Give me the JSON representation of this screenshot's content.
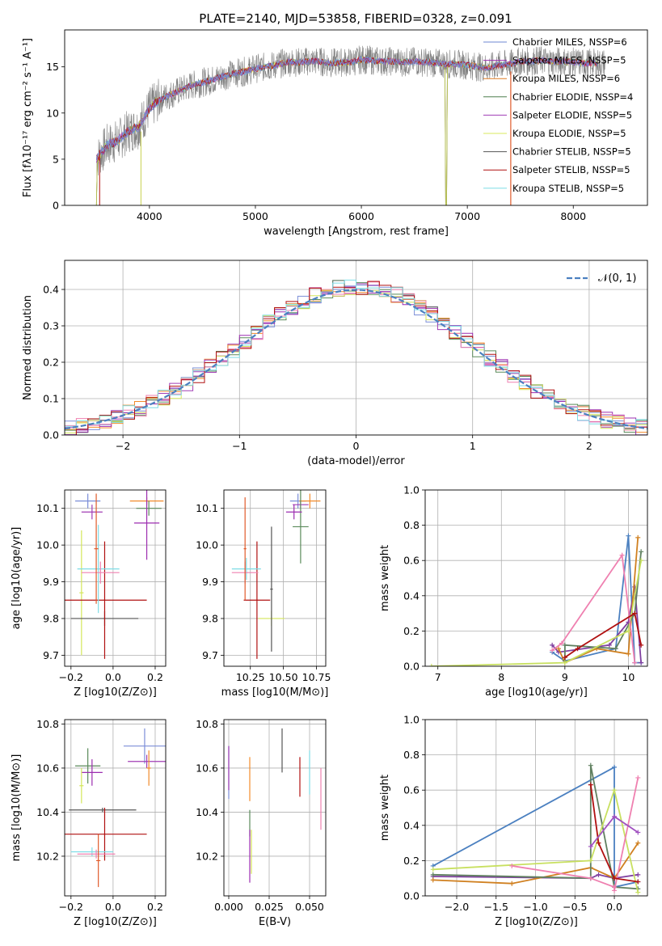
{
  "figure_title": "PLATE=2140, MJD=53858, FIBERID=0328, z=0.091",
  "colors": [
    "#7b8ed8",
    "#a13db5",
    "#f28b2b",
    "#5a8a5a",
    "#9c2db0",
    "#d4e65a",
    "#555555",
    "#b01010",
    "#7fdde6",
    "#ef80b0",
    "#e05a2a",
    "#4b80c0",
    "#d08020",
    "#608060",
    "#8040a0",
    "#c8d050"
  ],
  "chart_data": [
    {
      "id": "spectrum",
      "type": "line",
      "xlabel": "wavelength [Angstrom, rest frame]",
      "ylabel": "Flux [fλ10⁻¹⁷ erg cm⁻² s⁻¹ A⁻¹]",
      "xlim": [
        3200,
        8700
      ],
      "ylim": [
        0,
        19
      ],
      "xticks": [
        "4000",
        "5000",
        "6000",
        "7000",
        "8000"
      ],
      "yticks": [
        "0",
        "5",
        "10",
        "15"
      ],
      "legend_position": "right",
      "legend": [
        "Chabrier MILES, NSSP=6",
        "Salpeter MILES, NSSP=5",
        "Kroupa MILES, NSSP=6",
        "Chabrier ELODIE, NSSP=4",
        "Salpeter ELODIE, NSSP=5",
        "Kroupa ELODIE, NSSP=5",
        "Chabrier STELIB, NSSP=5",
        "Salpeter STELIB, NSSP=5",
        "Kroupa STELIB, NSSP=5"
      ],
      "legend_colors": [
        "#6d87d3",
        "#9c2db0",
        "#e07c24",
        "#4f7f4f",
        "#a13db5",
        "#d9ea5c",
        "#555555",
        "#b01010",
        "#7fdde6"
      ],
      "x": [
        3500,
        3600,
        3700,
        3800,
        3900,
        4000,
        4100,
        4200,
        4300,
        4400,
        4500,
        4600,
        4700,
        4800,
        4900,
        5000,
        5100,
        5200,
        5300,
        5400,
        5500,
        5600,
        5700,
        5800,
        5900,
        6000,
        6100,
        6200,
        6300,
        6400,
        6500,
        6600,
        6700,
        6800,
        6900,
        7000,
        7100,
        7200,
        7300,
        7400,
        7500,
        7600,
        7700,
        7800,
        7900,
        8000,
        8100,
        8200,
        8300
      ],
      "y": [
        5.0,
        6.5,
        7.0,
        8.0,
        8.5,
        10.5,
        11.5,
        12.0,
        12.5,
        13.0,
        13.3,
        13.6,
        14.0,
        14.3,
        14.5,
        14.8,
        15.0,
        15.2,
        15.5,
        15.5,
        15.6,
        15.6,
        15.4,
        15.5,
        15.5,
        15.8,
        15.7,
        15.6,
        15.6,
        15.5,
        15.6,
        15.5,
        15.4,
        15.3,
        15.3,
        15.2,
        15.0,
        14.9,
        15.2,
        15.3,
        15.6,
        15.6,
        15.7,
        15.6,
        15.6,
        15.5,
        15.4,
        15.4,
        15.4
      ]
    },
    {
      "id": "residuals",
      "type": "line",
      "xlabel": "(data-model)/error",
      "ylabel": "Normed distribution",
      "xlim": [
        -2.5,
        2.5
      ],
      "ylim": [
        0,
        0.48
      ],
      "xticks": [
        "−2",
        "−1",
        "0",
        "1",
        "2"
      ],
      "yticks": [
        "0.0",
        "0.1",
        "0.2",
        "0.3",
        "0.4"
      ],
      "grid": true,
      "legend_position": "top-right",
      "legend": [
        "𝒩(0, 1)"
      ]
    },
    {
      "id": "age_vs_Z",
      "type": "scatter",
      "xlabel": "Z [log10(Z/Z⊙)]",
      "ylabel": "age  [log10(age/yr)]",
      "xlim": [
        -0.23,
        0.25
      ],
      "ylim": [
        9.67,
        10.15
      ],
      "xticks": [
        "−0.2",
        "0.0",
        "0.2"
      ],
      "yticks": [
        "9.7",
        "9.8",
        "9.9",
        "10.0",
        "10.1"
      ],
      "grid": true,
      "points": [
        {
          "x": -0.12,
          "xerr": 0.06,
          "y": 10.12,
          "yerr": 0.02
        },
        {
          "x": -0.1,
          "xerr": 0.05,
          "y": 10.09,
          "yerr": 0.02
        },
        {
          "x": 0.16,
          "xerr": 0.08,
          "y": 10.12,
          "yerr": 0.01
        },
        {
          "x": 0.17,
          "xerr": 0.06,
          "y": 10.1,
          "yerr": 0.02
        },
        {
          "x": 0.16,
          "xerr": 0.06,
          "y": 10.06,
          "yerr": 0.1
        },
        {
          "x": -0.15,
          "xerr": 0.01,
          "y": 9.87,
          "yerr": 0.17
        },
        {
          "x": -0.04,
          "xerr": 0.16,
          "y": 9.8,
          "yerr": 0.02
        },
        {
          "x": -0.04,
          "xerr": 0.2,
          "y": 9.85,
          "yerr": 0.16
        },
        {
          "x": -0.07,
          "xerr": 0.1,
          "y": 9.935,
          "yerr": 0.12
        },
        {
          "x": -0.06,
          "xerr": 0.09,
          "y": 9.925,
          "yerr": 0.03
        },
        {
          "x": -0.08,
          "xerr": 0.01,
          "y": 9.99,
          "yerr": 0.15
        }
      ]
    },
    {
      "id": "age_vs_mass",
      "type": "scatter",
      "xlabel": "mass [log10(M/M⊙)]",
      "xlim": [
        10.05,
        10.82
      ],
      "ylim": [
        9.67,
        10.15
      ],
      "xticks": [
        "10.25",
        "10.50",
        "10.75"
      ],
      "yticks": [
        "9.7",
        "9.8",
        "9.9",
        "10.0",
        "10.1"
      ],
      "grid": true,
      "points": [
        {
          "x": 10.61,
          "xerr": 0.06,
          "y": 10.12,
          "yerr": 0.02
        },
        {
          "x": 10.63,
          "xerr": 0.06,
          "y": 10.11,
          "yerr": 0.01
        },
        {
          "x": 10.7,
          "xerr": 0.08,
          "y": 10.12,
          "yerr": 0.02
        },
        {
          "x": 10.63,
          "xerr": 0.06,
          "y": 10.05,
          "yerr": 0.1
        },
        {
          "x": 10.58,
          "xerr": 0.06,
          "y": 10.09,
          "yerr": 0.02
        },
        {
          "x": 10.41,
          "xerr": 0.1,
          "y": 9.8,
          "yerr": 0.02
        },
        {
          "x": 10.41,
          "xerr": 0.01,
          "y": 9.88,
          "yerr": 0.17
        },
        {
          "x": 10.3,
          "xerr": 0.1,
          "y": 9.85,
          "yerr": 0.16
        },
        {
          "x": 10.22,
          "xerr": 0.11,
          "y": 9.935,
          "yerr": 0.03
        },
        {
          "x": 10.21,
          "xerr": 0.1,
          "y": 9.925,
          "yerr": 0.03
        },
        {
          "x": 10.21,
          "xerr": 0.01,
          "y": 9.99,
          "yerr": 0.14
        }
      ]
    },
    {
      "id": "weight_vs_age",
      "type": "line",
      "xlabel": "age  [log10(age/yr)]",
      "ylabel": "mass weight",
      "xlim": [
        6.8,
        10.3
      ],
      "ylim": [
        0,
        1.0
      ],
      "xticks": [
        "7",
        "8",
        "9",
        "10"
      ],
      "yticks": [
        "0.0",
        "0.2",
        "0.4",
        "0.6",
        "0.8",
        "1.0"
      ],
      "grid": true,
      "series": [
        {
          "x": [
            8.8,
            9.0,
            9.8,
            10.0,
            10.1,
            10.2
          ],
          "y": [
            0.08,
            0.03,
            0.1,
            0.74,
            0.02,
            0.02
          ]
        },
        {
          "x": [
            8.8,
            8.9,
            9.7,
            10.0,
            10.1,
            10.2
          ],
          "y": [
            0.12,
            0.08,
            0.12,
            0.25,
            0.45,
            0.02
          ]
        },
        {
          "x": [
            8.9,
            9.0,
            9.5,
            10.0,
            10.15
          ],
          "y": [
            0.1,
            0.02,
            0.1,
            0.07,
            0.73
          ]
        },
        {
          "x": [
            9.0,
            9.0,
            9.8,
            10.1,
            10.2
          ],
          "y": [
            0.03,
            0.12,
            0.1,
            0.3,
            0.65
          ]
        },
        {
          "x": [
            6.9,
            9.0,
            10.0,
            10.2
          ],
          "y": [
            0.0,
            0.02,
            0.2,
            0.6
          ]
        },
        {
          "x": [
            8.8,
            8.95,
            9.9,
            10.1
          ],
          "y": [
            0.09,
            0.13,
            0.63,
            0.02
          ]
        },
        {
          "x": [
            9.0,
            9.2,
            10.1,
            10.2
          ],
          "y": [
            0.05,
            0.1,
            0.3,
            0.12
          ]
        }
      ]
    },
    {
      "id": "mass_vs_Z",
      "type": "scatter",
      "xlabel": "Z [log10(Z/Z⊙)]",
      "ylabel": "mass [log10(M/M⊙)]",
      "xlim": [
        -0.23,
        0.25
      ],
      "ylim": [
        10.02,
        10.82
      ],
      "xticks": [
        "−0.2",
        "0.0",
        "0.2"
      ],
      "yticks": [
        "10.2",
        "10.4",
        "10.6",
        "10.8"
      ],
      "grid": true,
      "points": [
        {
          "x": 0.15,
          "xerr": 0.1,
          "y": 10.7,
          "yerr": 0.08
        },
        {
          "x": 0.16,
          "xerr": 0.09,
          "y": 10.63,
          "yerr": 0.03
        },
        {
          "x": 0.17,
          "xerr": 0.01,
          "y": 10.6,
          "yerr": 0.08
        },
        {
          "x": -0.12,
          "xerr": 0.06,
          "y": 10.61,
          "yerr": 0.08
        },
        {
          "x": -0.1,
          "xerr": 0.05,
          "y": 10.58,
          "yerr": 0.06
        },
        {
          "x": -0.15,
          "xerr": 0.01,
          "y": 10.52,
          "yerr": 0.08
        },
        {
          "x": -0.05,
          "xerr": 0.16,
          "y": 10.41,
          "yerr": 0.01
        },
        {
          "x": -0.04,
          "xerr": 0.2,
          "y": 10.3,
          "yerr": 0.12
        },
        {
          "x": -0.1,
          "xerr": 0.1,
          "y": 10.22,
          "yerr": 0.02
        },
        {
          "x": -0.08,
          "xerr": 0.09,
          "y": 10.21,
          "yerr": 0.02
        },
        {
          "x": -0.07,
          "xerr": 0.01,
          "y": 10.18,
          "yerr": 0.12
        }
      ]
    },
    {
      "id": "mass_vs_EBV",
      "type": "scatter",
      "xlabel": "E(B-V)",
      "xlim": [
        -0.003,
        0.06
      ],
      "ylim": [
        10.02,
        10.82
      ],
      "xticks": [
        "0.000",
        "0.025",
        "0.050"
      ],
      "yticks": [
        "10.2",
        "10.4",
        "10.6",
        "10.8"
      ],
      "grid": true,
      "points": [
        {
          "x": 0.0,
          "y": 10.58,
          "yerr": 0.12
        },
        {
          "x": 0.0,
          "y": 10.6,
          "yerr": 0.1
        },
        {
          "x": 0.013,
          "y": 10.55,
          "yerr": 0.1
        },
        {
          "x": 0.013,
          "y": 10.35,
          "yerr": 0.06
        },
        {
          "x": 0.013,
          "y": 10.2,
          "yerr": 0.12
        },
        {
          "x": 0.014,
          "y": 10.22,
          "yerr": 0.1
        },
        {
          "x": 0.033,
          "y": 10.68,
          "yerr": 0.1
        },
        {
          "x": 0.044,
          "y": 10.56,
          "yerr": 0.09
        },
        {
          "x": 0.05,
          "y": 10.58,
          "yerr": 0.1
        },
        {
          "x": 0.057,
          "y": 10.46,
          "yerr": 0.14
        }
      ]
    },
    {
      "id": "weight_vs_Z",
      "type": "line",
      "xlabel": "Z [log10(Z/Z⊙)]",
      "ylabel": "mass weight",
      "xlim": [
        -2.4,
        0.42
      ],
      "ylim": [
        0,
        1.0
      ],
      "xticks": [
        "−2.0",
        "−1.5",
        "−1.0",
        "−0.5",
        "0.0"
      ],
      "yticks": [
        "0.0",
        "0.2",
        "0.4",
        "0.6",
        "0.8",
        "1.0"
      ],
      "grid": true,
      "series": [
        {
          "x": [
            -2.3,
            0.0,
            0.0,
            0.3
          ],
          "y": [
            0.17,
            0.73,
            0.05,
            0.08
          ]
        },
        {
          "x": [
            -2.3,
            -0.3,
            -0.2,
            0.0,
            0.3
          ],
          "y": [
            0.11,
            0.1,
            0.12,
            0.1,
            0.12
          ]
        },
        {
          "x": [
            -2.3,
            -1.3,
            -0.3,
            0.0,
            0.3
          ],
          "y": [
            0.09,
            0.07,
            0.16,
            0.1,
            0.3
          ]
        },
        {
          "x": [
            -2.3,
            -0.3,
            -0.3,
            0.0,
            0.3
          ],
          "y": [
            0.12,
            0.1,
            0.74,
            0.05,
            0.04
          ]
        },
        {
          "x": [
            -2.3,
            -0.3,
            0.0,
            0.3
          ],
          "y": [
            0.15,
            0.2,
            0.6,
            0.02
          ]
        },
        {
          "x": [
            -1.3,
            -0.3,
            0.0,
            0.0,
            0.3
          ],
          "y": [
            0.17,
            0.1,
            0.05,
            0.03,
            0.67
          ]
        },
        {
          "x": [
            -0.3,
            -0.2,
            0.0,
            0.3
          ],
          "y": [
            0.63,
            0.3,
            0.1,
            0.08
          ]
        },
        {
          "x": [
            -0.3,
            0.0,
            0.3
          ],
          "y": [
            0.28,
            0.45,
            0.36
          ]
        }
      ]
    }
  ]
}
